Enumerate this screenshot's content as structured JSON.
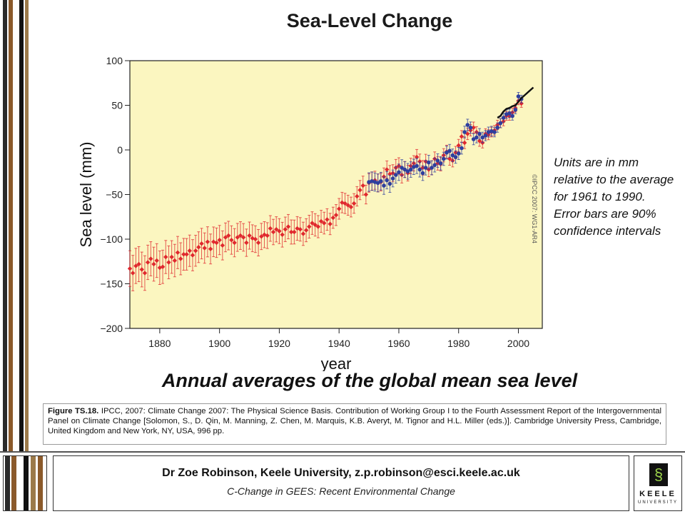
{
  "title": "Sea-Level Change",
  "subtitle": "Annual averages of the global mean sea level",
  "note": "Units are in mm relative to the average for 1961 to 1990. Error bars are 90% confidence intervals",
  "citation": {
    "label": "Figure TS.18.",
    "text": " IPCC, 2007: Climate Change 2007: The Physical Science Basis. Contribution of Working Group I to the Fourth Assessment Report of the Intergovernmental Panel on Climate Change [Solomon, S., D. Qin, M. Manning, Z. Chen, M. Marquis, K.B. Averyt, M. Tignor and H.L. Miller (eds.)]. Cambridge University Press, Cambridge, United Kingdom and New York, NY, USA, 996 pp."
  },
  "footer": {
    "author": "Dr Zoe Robinson, Keele University, z.p.robinson@esci.keele.ac.uk",
    "course": "C-Change in GEES: Recent Environmental Change"
  },
  "logo": {
    "name": "KEELE",
    "sub": "UNIVERSITY"
  },
  "colors": {
    "plot_background": "#fbf6c0",
    "red_series": "#e0282e",
    "blue_series": "#2e3f9e",
    "black_series": "#111111",
    "stripes": [
      "#2b2b2b",
      "#8b5a2b",
      "#ffffff",
      "#111111",
      "#9b7a4a"
    ]
  },
  "chart_data": {
    "type": "scatter",
    "xlabel": "year",
    "ylabel": "Sea level (mm)",
    "xlim": [
      1870,
      2008
    ],
    "ylim": [
      -200,
      100
    ],
    "xticks": [
      1880,
      1900,
      1920,
      1940,
      1960,
      1980,
      2000
    ],
    "yticks": [
      -200,
      -150,
      -100,
      -50,
      0,
      50,
      100
    ],
    "grid": false,
    "watermark": "©IPCC 2007: WG1-AR4",
    "series": [
      {
        "color": "red",
        "marker": "diamond",
        "error_bars": true,
        "x": [
          1870,
          1871,
          1872,
          1873,
          1874,
          1875,
          1876,
          1877,
          1878,
          1879,
          1880,
          1881,
          1882,
          1883,
          1884,
          1885,
          1886,
          1887,
          1888,
          1889,
          1890,
          1891,
          1892,
          1893,
          1894,
          1895,
          1896,
          1897,
          1898,
          1899,
          1900,
          1901,
          1902,
          1903,
          1904,
          1905,
          1906,
          1907,
          1908,
          1909,
          1910,
          1911,
          1912,
          1913,
          1914,
          1915,
          1916,
          1917,
          1918,
          1919,
          1920,
          1921,
          1922,
          1923,
          1924,
          1925,
          1926,
          1927,
          1928,
          1929,
          1930,
          1931,
          1932,
          1933,
          1934,
          1935,
          1936,
          1937,
          1938,
          1939,
          1940,
          1941,
          1942,
          1943,
          1944,
          1945,
          1946,
          1947,
          1948,
          1949,
          1950,
          1951,
          1952,
          1953,
          1954,
          1955,
          1956,
          1957,
          1958,
          1959,
          1960,
          1961,
          1962,
          1963,
          1964,
          1965,
          1966,
          1967,
          1968,
          1969,
          1970,
          1971,
          1972,
          1973,
          1974,
          1975,
          1976,
          1977,
          1978,
          1979,
          1980,
          1981,
          1982,
          1983,
          1984,
          1985,
          1986,
          1987,
          1988,
          1989,
          1990,
          1991,
          1992,
          1993,
          1994,
          1995,
          1996,
          1997,
          1998,
          1999,
          2000,
          2001
        ],
        "y": [
          -133,
          -138,
          -130,
          -128,
          -134,
          -138,
          -126,
          -122,
          -128,
          -124,
          -132,
          -131,
          -120,
          -126,
          -120,
          -124,
          -115,
          -122,
          -117,
          -117,
          -113,
          -118,
          -113,
          -109,
          -105,
          -110,
          -103,
          -111,
          -103,
          -104,
          -101,
          -107,
          -98,
          -96,
          -101,
          -104,
          -98,
          -96,
          -98,
          -104,
          -96,
          -99,
          -100,
          -104,
          -97,
          -95,
          -96,
          -88,
          -92,
          -89,
          -91,
          -95,
          -89,
          -86,
          -92,
          -92,
          -88,
          -89,
          -94,
          -90,
          -86,
          -82,
          -84,
          -86,
          -80,
          -82,
          -78,
          -83,
          -76,
          -73,
          -66,
          -59,
          -60,
          -62,
          -64,
          -60,
          -52,
          -45,
          -40,
          -50,
          -37,
          -35,
          -34,
          -37,
          -36,
          -30,
          -22,
          -27,
          -26,
          -20,
          -18,
          -28,
          -22,
          -26,
          -18,
          -15,
          -8,
          -13,
          -20,
          -13,
          -22,
          -20,
          -10,
          -15,
          -16,
          -6,
          -2,
          -10,
          -12,
          -3,
          5,
          15,
          8,
          18,
          22,
          25,
          20,
          10,
          8,
          18,
          17,
          20,
          22,
          28,
          30,
          32,
          38,
          38,
          42,
          47,
          55,
          52
        ]
      },
      {
        "color": "blue",
        "marker": "circle",
        "error_bars": true,
        "x": [
          1950,
          1951,
          1952,
          1953,
          1954,
          1955,
          1956,
          1957,
          1958,
          1959,
          1960,
          1961,
          1962,
          1963,
          1964,
          1965,
          1966,
          1967,
          1968,
          1969,
          1970,
          1971,
          1972,
          1973,
          1974,
          1975,
          1976,
          1977,
          1978,
          1979,
          1980,
          1981,
          1982,
          1983,
          1984,
          1985,
          1986,
          1987,
          1988,
          1989,
          1990,
          1991,
          1992,
          1993,
          1994,
          1995,
          1996,
          1997,
          1998,
          1999,
          2000,
          2001
        ],
        "y": [
          -36,
          -35,
          -36,
          -37,
          -35,
          -40,
          -34,
          -38,
          -32,
          -28,
          -25,
          -20,
          -22,
          -24,
          -22,
          -19,
          -18,
          -22,
          -26,
          -20,
          -14,
          -20,
          -17,
          -12,
          -15,
          -10,
          -3,
          -1,
          -6,
          -8,
          -4,
          2,
          20,
          28,
          25,
          12,
          14,
          18,
          14,
          16,
          20,
          21,
          20,
          25,
          30,
          36,
          40,
          41,
          38,
          45,
          60,
          57
        ]
      },
      {
        "color": "black",
        "marker": "line",
        "error_bars": false,
        "x": [
          1993,
          1994,
          1995,
          1996,
          1997,
          1998,
          1999,
          2000,
          2001,
          2002,
          2003,
          2004,
          2005
        ],
        "y": [
          36,
          38,
          43,
          46,
          47,
          49,
          50,
          54,
          58,
          61,
          64,
          67,
          70
        ]
      }
    ]
  }
}
